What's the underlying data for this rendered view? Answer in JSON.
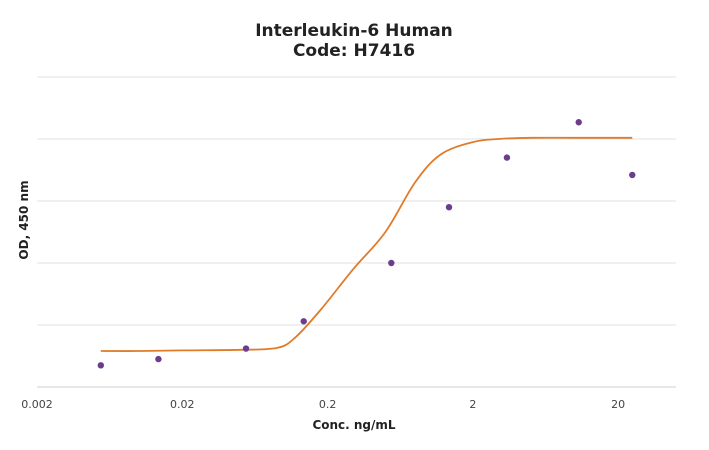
{
  "chart_data": {
    "type": "scatter",
    "title": "Interleukin-6 Human",
    "subtitle": "Code: H7416",
    "xlabel": "Conc. ng/mL",
    "ylabel": "OD, 450 nm",
    "x_scale": "log10",
    "xlim": [
      0.002,
      50
    ],
    "x_ticks": [
      0.002,
      0.02,
      0.2,
      2,
      20
    ],
    "x_tick_labels": [
      "0.002",
      "0.02",
      "0.2",
      "2",
      "20"
    ],
    "ylim": [
      0,
      5
    ],
    "y_gridlines": [
      0,
      1,
      2,
      3,
      4,
      5
    ],
    "grid": "horizontal",
    "legend": "none",
    "series": [
      {
        "type": "scatter",
        "color": "#6a3d8f",
        "x": [
          0.0055,
          0.0137,
          0.0549,
          0.137,
          0.549,
          1.37,
          3.43,
          10.7,
          25
        ],
        "y": [
          0.35,
          0.45,
          0.62,
          1.06,
          2.0,
          2.9,
          3.7,
          4.27,
          3.42
        ]
      },
      {
        "type": "line",
        "smooth": true,
        "color": "#e07b2a",
        "x": [
          0.0055,
          0.01,
          0.02,
          0.05,
          0.09,
          0.12,
          0.18,
          0.3,
          0.5,
          0.8,
          1.2,
          2,
          3,
          5,
          10,
          25
        ],
        "y": [
          0.58,
          0.58,
          0.59,
          0.6,
          0.63,
          0.8,
          1.25,
          1.9,
          2.5,
          3.3,
          3.75,
          3.95,
          4.0,
          4.02,
          4.02,
          4.02
        ]
      }
    ]
  }
}
